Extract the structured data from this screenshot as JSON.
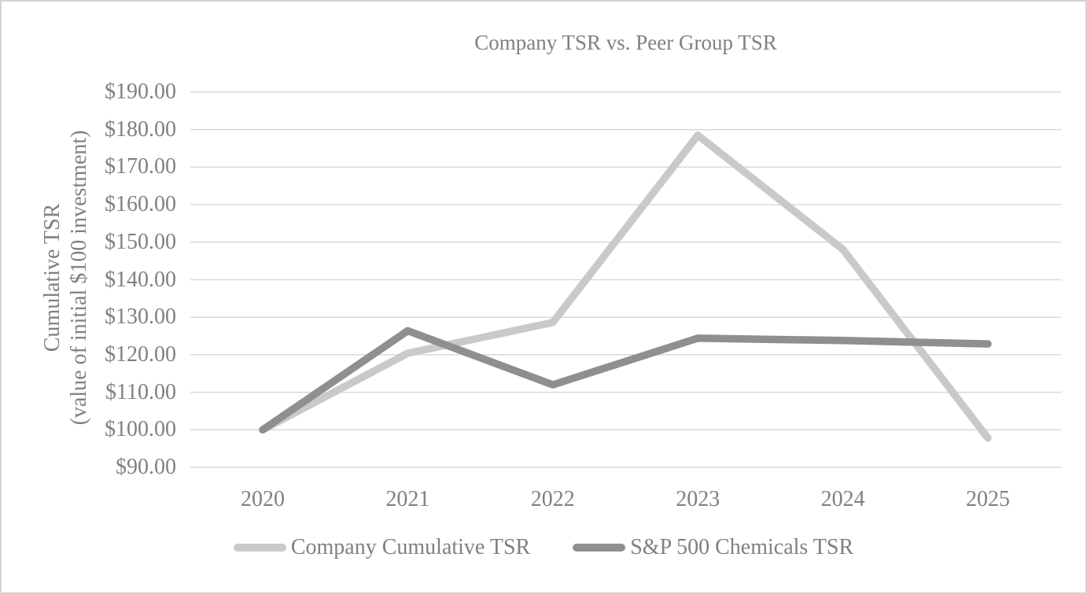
{
  "window": {
    "background": "#ffffff",
    "border_color": "#d2d2d2"
  },
  "chart_data": {
    "type": "line",
    "title": "Company TSR vs. Peer Group TSR",
    "ylabel_line1": "Cumulative TSR",
    "ylabel_line2": "(value of initial $100 investment)",
    "categories": [
      "2020",
      "2021",
      "2022",
      "2023",
      "2024",
      "2025"
    ],
    "series": [
      {
        "name": "Company Cumulative TSR",
        "color": "#c9c9c9",
        "values": [
          100.0,
          120.4,
          128.6,
          178.5,
          148.1,
          97.8
        ]
      },
      {
        "name": "S&P 500 Chemicals TSR",
        "color": "#8f8f8f",
        "values": [
          100.0,
          126.4,
          112.0,
          124.4,
          123.8,
          122.9
        ]
      }
    ],
    "y_axis": {
      "min": 90,
      "max": 190,
      "step": 10,
      "tick_labels": [
        "$190.00",
        "$180.00",
        "$170.00",
        "$160.00",
        "$150.00",
        "$140.00",
        "$130.00",
        "$120.00",
        "$110.00",
        "$100.00",
        "$90.00"
      ]
    },
    "x_axis": {
      "tick_labels": [
        "2020",
        "2021",
        "2022",
        "2023",
        "2024",
        "2025"
      ]
    },
    "grid": true,
    "gridline_color": "#d9d9d9",
    "text_color": "#808080",
    "legend_position": "bottom"
  }
}
